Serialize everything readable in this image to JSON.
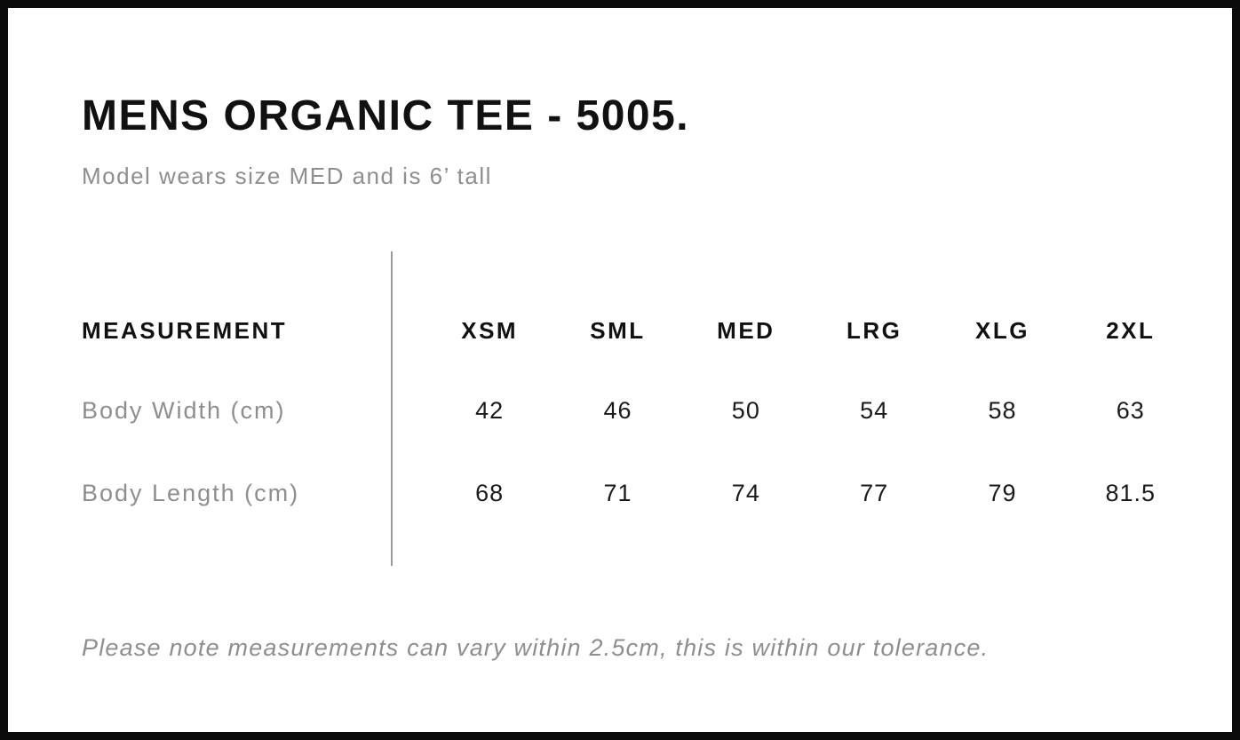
{
  "page": {
    "title": "MENS ORGANIC TEE - 5005.",
    "subtitle": "Model wears size MED and is 6’ tall",
    "note": "Please note measurements can vary within 2.5cm, this is within our tolerance."
  },
  "size_chart": {
    "measurement_header": "MEASUREMENT",
    "sizes": [
      "XSM",
      "SML",
      "MED",
      "LRG",
      "XLG",
      "2XL"
    ],
    "rows": [
      {
        "label": "Body Width (cm)",
        "values": [
          "42",
          "46",
          "50",
          "54",
          "58",
          "63"
        ]
      },
      {
        "label": "Body Length (cm)",
        "values": [
          "68",
          "71",
          "74",
          "77",
          "79",
          "81.5"
        ]
      }
    ]
  },
  "chart_data": {
    "type": "table",
    "title": "MENS ORGANIC TEE - 5005.",
    "columns": [
      "MEASUREMENT",
      "XSM",
      "SML",
      "MED",
      "LRG",
      "XLG",
      "2XL"
    ],
    "rows": [
      [
        "Body Width (cm)",
        42,
        46,
        50,
        54,
        58,
        63
      ],
      [
        "Body Length (cm)",
        68,
        71,
        74,
        77,
        79,
        81.5
      ]
    ],
    "units": "cm",
    "annotations": [
      "Model wears size MED and is 6’ tall",
      "Please note measurements can vary within 2.5cm, this is within our tolerance."
    ]
  },
  "colors": {
    "text": "#111111",
    "muted_text": "#8e8e8e",
    "divider": "#9a9a9a",
    "border": "#0a0a0a",
    "background": "#ffffff"
  }
}
